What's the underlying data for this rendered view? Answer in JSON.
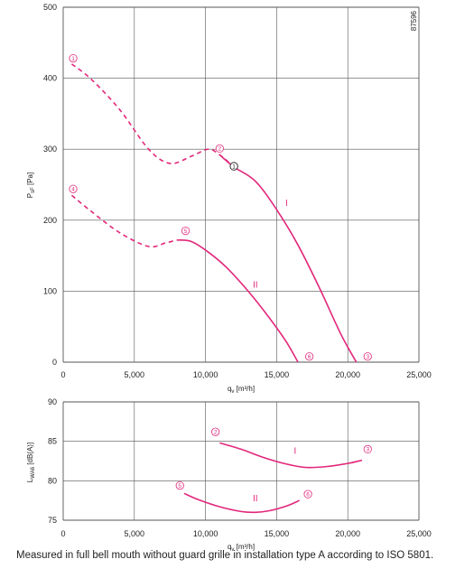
{
  "figure_id": "87596",
  "caption": "Measured in full bell mouth without guard grille in installation type A according to ISO 5801.",
  "curve_color": "#e2277b",
  "chart_data": [
    {
      "type": "line",
      "ylabel_main": "P",
      "ylabel_sub": "sF",
      "ylabel_unit": " [Pa]",
      "xlabel_main": "q",
      "xlabel_sub": "v",
      "xlabel_unit": " [m³/h]",
      "xlim": [
        0,
        25000
      ],
      "ylim": [
        0,
        500
      ],
      "x_ticks": [
        0,
        5000,
        10000,
        15000,
        20000,
        25000
      ],
      "x_tick_labels": [
        "0",
        "5,000",
        "10,000",
        "15,000",
        "20,000",
        "25,000"
      ],
      "y_ticks": [
        0,
        100,
        200,
        300,
        400,
        500
      ],
      "y_tick_labels": [
        "0",
        "100",
        "200",
        "300",
        "400",
        "500"
      ],
      "grid": true,
      "series": [
        {
          "name": "I",
          "label_at": [
            15700,
            220
          ],
          "segments": [
            {
              "style": "dashed",
              "points": [
                [
                  600,
                  420
                ],
                [
                  2000,
                  398
                ],
                [
                  4000,
                  355
                ],
                [
                  6000,
                  300
                ],
                [
                  7500,
                  280
                ],
                [
                  9000,
                  290
                ],
                [
                  10200,
                  300
                ],
                [
                  11000,
                  292
                ],
                [
                  12000,
                  275
                ]
              ]
            },
            {
              "style": "solid",
              "points": [
                [
                  11000,
                  292
                ],
                [
                  12000,
                  275
                ],
                [
                  13500,
                  255
                ],
                [
                  15000,
                  215
                ],
                [
                  16500,
                  165
                ],
                [
                  18000,
                  105
                ],
                [
                  19500,
                  40
                ],
                [
                  20600,
                  0
                ]
              ]
            }
          ]
        },
        {
          "name": "II",
          "label_at": [
            13500,
            105
          ],
          "segments": [
            {
              "style": "dashed",
              "points": [
                [
                  600,
                  235
                ],
                [
                  2000,
                  212
                ],
                [
                  4000,
                  182
                ],
                [
                  6000,
                  163
                ],
                [
                  7200,
                  168
                ],
                [
                  8000,
                  172
                ]
              ]
            },
            {
              "style": "solid",
              "points": [
                [
                  8000,
                  172
                ],
                [
                  9000,
                  170
                ],
                [
                  10200,
                  155
                ],
                [
                  11500,
                  133
                ],
                [
                  13000,
                  100
                ],
                [
                  14500,
                  62
                ],
                [
                  15700,
                  28
                ],
                [
                  16500,
                  0
                ]
              ]
            }
          ]
        }
      ],
      "markers": [
        {
          "label": "1",
          "x": 700,
          "y": 428
        },
        {
          "label": "2",
          "x": 11000,
          "y": 301
        },
        {
          "label": "3",
          "x": 21400,
          "y": 8
        },
        {
          "label": "4",
          "x": 700,
          "y": 244
        },
        {
          "label": "5",
          "x": 8600,
          "y": 185
        },
        {
          "label": "6",
          "x": 17300,
          "y": 8
        }
      ],
      "operating_point": {
        "label": "1",
        "x": 12000,
        "y": 276
      }
    },
    {
      "type": "line",
      "ylabel_main": "L",
      "ylabel_sub": "WA6",
      "ylabel_unit": " [dB(A)]",
      "xlabel_main": "q",
      "xlabel_sub": "v",
      "xlabel_unit": " [m³/h]",
      "xlim": [
        0,
        25000
      ],
      "ylim": [
        75,
        90
      ],
      "x_ticks": [
        0,
        5000,
        10000,
        15000,
        20000,
        25000
      ],
      "x_tick_labels": [
        "0",
        "5,000",
        "10,000",
        "15,000",
        "20,000",
        "25,000"
      ],
      "y_ticks": [
        75,
        80,
        85,
        90
      ],
      "y_tick_labels": [
        "75",
        "80",
        "85",
        "90"
      ],
      "grid": true,
      "series": [
        {
          "name": "I",
          "label_at": [
            16300,
            83.4
          ],
          "segments": [
            {
              "style": "solid",
              "points": [
                [
                  11000,
                  84.8
                ],
                [
                  12500,
                  84
                ],
                [
                  14000,
                  83
                ],
                [
                  15500,
                  82.2
                ],
                [
                  17000,
                  81.7
                ],
                [
                  18500,
                  81.8
                ],
                [
                  20000,
                  82.2
                ],
                [
                  21000,
                  82.6
                ]
              ]
            }
          ]
        },
        {
          "name": "II",
          "label_at": [
            13500,
            77.4
          ],
          "segments": [
            {
              "style": "solid",
              "points": [
                [
                  8500,
                  78.4
                ],
                [
                  9500,
                  77.6
                ],
                [
                  11000,
                  76.7
                ],
                [
                  12500,
                  76.1
                ],
                [
                  13500,
                  76
                ],
                [
                  14500,
                  76.2
                ],
                [
                  15700,
                  76.8
                ],
                [
                  16600,
                  77.5
                ]
              ]
            }
          ]
        }
      ],
      "markers": [
        {
          "label": "2",
          "x": 10700,
          "y": 86.2
        },
        {
          "label": "3",
          "x": 21400,
          "y": 84.0
        },
        {
          "label": "5",
          "x": 8200,
          "y": 79.4
        },
        {
          "label": "6",
          "x": 17200,
          "y": 78.3
        }
      ]
    }
  ]
}
